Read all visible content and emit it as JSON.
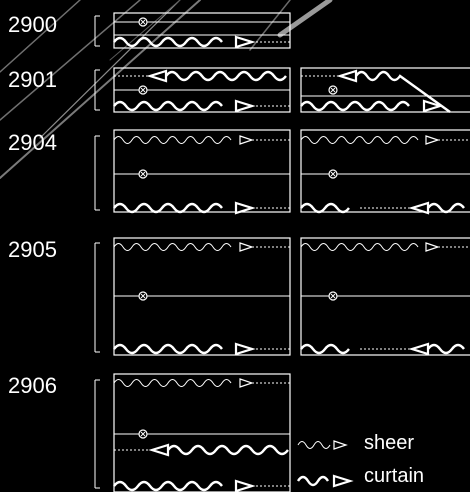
{
  "rows": [
    {
      "label": "2900"
    },
    {
      "label": "2901"
    },
    {
      "label": "2904"
    },
    {
      "label": "2905"
    },
    {
      "label": "2906"
    }
  ],
  "legend": {
    "sheer": "sheer",
    "curtain": "curtain"
  },
  "colors": {
    "background": "#000000",
    "line": "#ffffff"
  }
}
